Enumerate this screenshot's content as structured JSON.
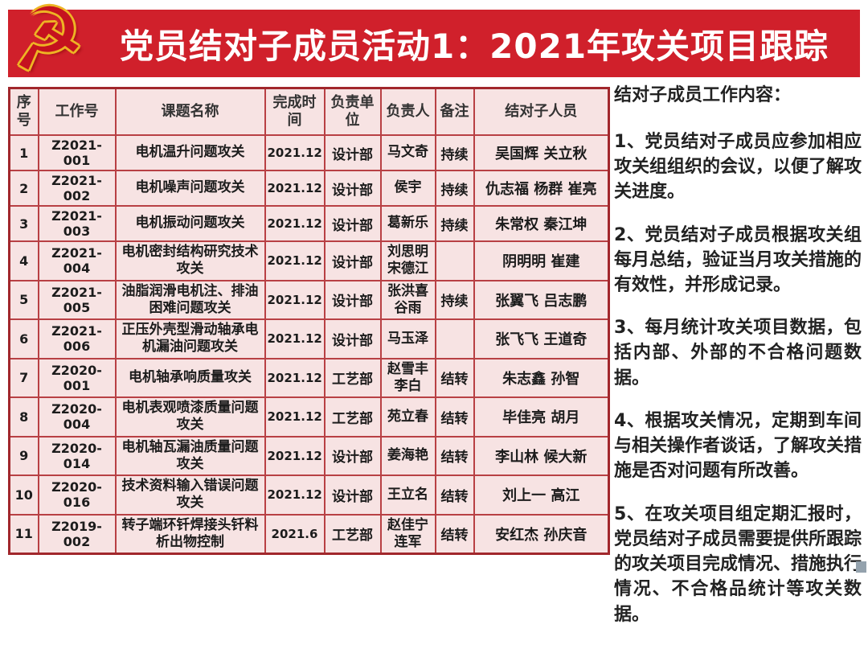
{
  "header": {
    "title": "党员结对子成员活动1：2021年攻关项目跟踪",
    "emblem_icon": "☭",
    "banner_color": "#d0202b"
  },
  "colors": {
    "banner_red": "#d0202b",
    "table_border": "#b84044",
    "cell_background": "#f7e3e3",
    "emblem_gold": "#eeb424"
  },
  "table": {
    "columns": [
      "序号",
      "工作号",
      "课题名称",
      "完成时间",
      "负责单位",
      "负责人",
      "备注",
      "结对子人员"
    ],
    "rows": [
      {
        "no": "1",
        "work_no": "Z2021-001",
        "topic": "电机温升问题攻关",
        "deadline": "2021.12",
        "unit": "设计部",
        "owner": "马文奇",
        "remark": "持续",
        "pair": "吴国辉  关立秋"
      },
      {
        "no": "2",
        "work_no": "Z2021-002",
        "topic": "电机噪声问题攻关",
        "deadline": "2021.12",
        "unit": "设计部",
        "owner": "侯宇",
        "remark": "持续",
        "pair": "仇志福 杨群 崔亮"
      },
      {
        "no": "3",
        "work_no": "Z2021-003",
        "topic": "电机振动问题攻关",
        "deadline": "2021.12",
        "unit": "设计部",
        "owner": "葛新乐",
        "remark": "持续",
        "pair": "朱常权  秦江坤"
      },
      {
        "no": "4",
        "work_no": "Z2021-004",
        "topic": "电机密封结构研究技术攻关",
        "deadline": "2021.12",
        "unit": "设计部",
        "owner": "刘思明\n宋德江",
        "remark": "",
        "pair": "阴明明  崔建"
      },
      {
        "no": "5",
        "work_no": "Z2021-005",
        "topic": "油脂润滑电机注、排油困难问题攻关",
        "deadline": "2021.12",
        "unit": "设计部",
        "owner": "张洪喜\n谷雨",
        "remark": "持续",
        "pair": "张翼飞  吕志鹏"
      },
      {
        "no": "6",
        "work_no": "Z2021-006",
        "topic": "正压外壳型滑动轴承电机漏油问题攻关",
        "deadline": "2021.12",
        "unit": "设计部",
        "owner": "马玉泽",
        "remark": "",
        "pair": "张飞飞  王道奇"
      },
      {
        "no": "7",
        "work_no": "Z2020-001",
        "topic": "电机轴承响质量攻关",
        "deadline": "2021.12",
        "unit": "工艺部",
        "owner": "赵雪丰\n李白",
        "remark": "结转",
        "pair": "朱志鑫  孙智"
      },
      {
        "no": "8",
        "work_no": "Z2020-004",
        "topic": "电机表观喷漆质量问题攻关",
        "deadline": "2021.12",
        "unit": "工艺部",
        "owner": "苑立春",
        "remark": "结转",
        "pair": "毕佳亮  胡月"
      },
      {
        "no": "9",
        "work_no": "Z2020-014",
        "topic": "电机轴瓦漏油质量问题攻关",
        "deadline": "2021.12",
        "unit": "设计部",
        "owner": "姜海艳",
        "remark": "结转",
        "pair": "李山林  候大新"
      },
      {
        "no": "10",
        "work_no": "Z2020-016",
        "topic": "技术资料输入错误问题攻关",
        "deadline": "2021.12",
        "unit": "设计部",
        "owner": "王立名",
        "remark": "结转",
        "pair": "刘上一  高江"
      },
      {
        "no": "11",
        "work_no": "Z2019-002",
        "topic": "转子端环钎焊接头钎料析出物控制",
        "deadline": "2021.6",
        "unit": "工艺部",
        "owner": "赵佳宁\n连军",
        "remark": "结转",
        "pair": "安红杰  孙庆音"
      }
    ]
  },
  "panel": {
    "title": "结对子成员工作内容：",
    "items": [
      "1、党员结对子成员应参加相应攻关组组织的会议，以便了解攻关进度。",
      "2、党员结对子成员根据攻关组每月总结，验证当月攻关措施的有效性，并形成记录。",
      "3、每月统计攻关项目数据，包括内部、外部的不合格问题数据。",
      "4、根据攻关情况，定期到车间与相关操作者谈话，了解攻关措施是否对问题有所改善。",
      "5、在攻关项目组定期汇报时，党员结对子成员需要提供所跟踪的攻关项目完成情况、措施执行情况、不合格品统计等攻关数据。"
    ]
  }
}
